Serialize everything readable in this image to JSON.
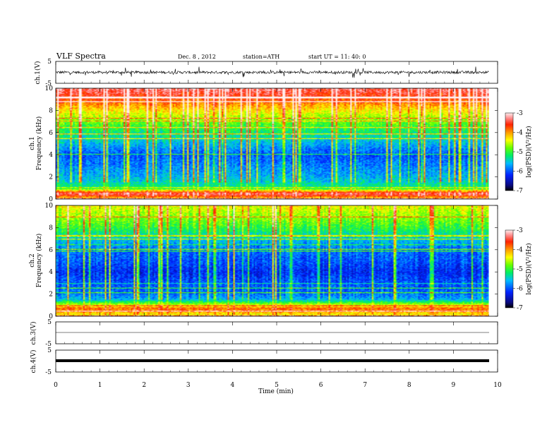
{
  "header": {
    "title": "VLF  Spectra",
    "date": "Dec. 8  ,  2012",
    "station": "station=ATH",
    "start": "start  UT  =    11: 40: 0"
  },
  "chart_data": [
    {
      "type": "line",
      "panel": "ch1-waveform",
      "ylabel": "ch.1(V)",
      "ylim": [
        -5,
        5
      ],
      "yticks": [
        "5",
        "-5"
      ],
      "xlim": [
        0,
        10
      ],
      "description_values": {
        "baseline_v": 0,
        "noise_amplitude_v": 1.5
      }
    },
    {
      "type": "heatmap",
      "panel": "ch1-spectrogram",
      "ylabel": "ch.1\nFrequency  (kHz)",
      "ylim": [
        0,
        10
      ],
      "yticks": [
        "0",
        "2",
        "4",
        "6",
        "8",
        "10"
      ],
      "xlim": [
        0,
        10
      ],
      "data_end_min": 9.8,
      "colorbar": {
        "label": "log(PSD)(V²/Hz)",
        "range": [
          -7,
          -3
        ],
        "ticks": [
          "-3",
          "-4",
          "-5",
          "-6",
          "-7"
        ]
      },
      "profile": [
        {
          "f_khz": 0,
          "log_psd": -4.3
        },
        {
          "f_khz": 0.5,
          "log_psd": -3.3
        },
        {
          "f_khz": 1,
          "log_psd": -5.2
        },
        {
          "f_khz": 2,
          "log_psd": -5.6
        },
        {
          "f_khz": 3,
          "log_psd": -5.8
        },
        {
          "f_khz": 4,
          "log_psd": -6.0
        },
        {
          "f_khz": 5,
          "log_psd": -5.6
        },
        {
          "f_khz": 6,
          "log_psd": -5.2
        },
        {
          "f_khz": 7,
          "log_psd": -4.8
        },
        {
          "f_khz": 8,
          "log_psd": -4.3
        },
        {
          "f_khz": 9,
          "log_psd": -3.7
        },
        {
          "f_khz": 10,
          "log_psd": -3.3
        }
      ]
    },
    {
      "type": "heatmap",
      "panel": "ch2-spectrogram",
      "ylabel": "ch.2\nFrequency  (kHz)",
      "ylim": [
        0,
        10
      ],
      "yticks": [
        "0",
        "2",
        "4",
        "6",
        "8",
        "10"
      ],
      "xlim": [
        0,
        10
      ],
      "data_end_min": 9.8,
      "colorbar": {
        "label": "log(PSD)(V²/Hz)",
        "range": [
          -7,
          -3
        ],
        "ticks": [
          "-3",
          "-4",
          "-5",
          "-6",
          "-7"
        ]
      },
      "profile": [
        {
          "f_khz": 0,
          "log_psd": -4.5
        },
        {
          "f_khz": 0.7,
          "log_psd": -3.8
        },
        {
          "f_khz": 1.5,
          "log_psd": -5.6
        },
        {
          "f_khz": 2,
          "log_psd": -5.9
        },
        {
          "f_khz": 3,
          "log_psd": -6.0
        },
        {
          "f_khz": 4,
          "log_psd": -6.2
        },
        {
          "f_khz": 5,
          "log_psd": -6.0
        },
        {
          "f_khz": 6,
          "log_psd": -5.9
        },
        {
          "f_khz": 7,
          "log_psd": -5.5
        },
        {
          "f_khz": 8,
          "log_psd": -5.0
        },
        {
          "f_khz": 9,
          "log_psd": -4.7
        },
        {
          "f_khz": 10,
          "log_psd": -4.4
        }
      ]
    },
    {
      "type": "line",
      "panel": "ch3-waveform",
      "ylabel": "ch.3(V)",
      "ylim": [
        -5,
        5
      ],
      "yticks": [
        "5",
        "-5"
      ],
      "description_values": {
        "baseline_v": 0
      }
    },
    {
      "type": "line",
      "panel": "ch4-waveform",
      "ylabel": "ch.4(V)",
      "ylim": [
        -5,
        5
      ],
      "yticks": [
        "5",
        "-5"
      ],
      "xlabel": "Time  (min)",
      "xticks": [
        "0",
        "1",
        "2",
        "3",
        "4",
        "5",
        "6",
        "7",
        "8",
        "9",
        "10"
      ],
      "description_values": {
        "baseline_v": 0
      }
    }
  ]
}
